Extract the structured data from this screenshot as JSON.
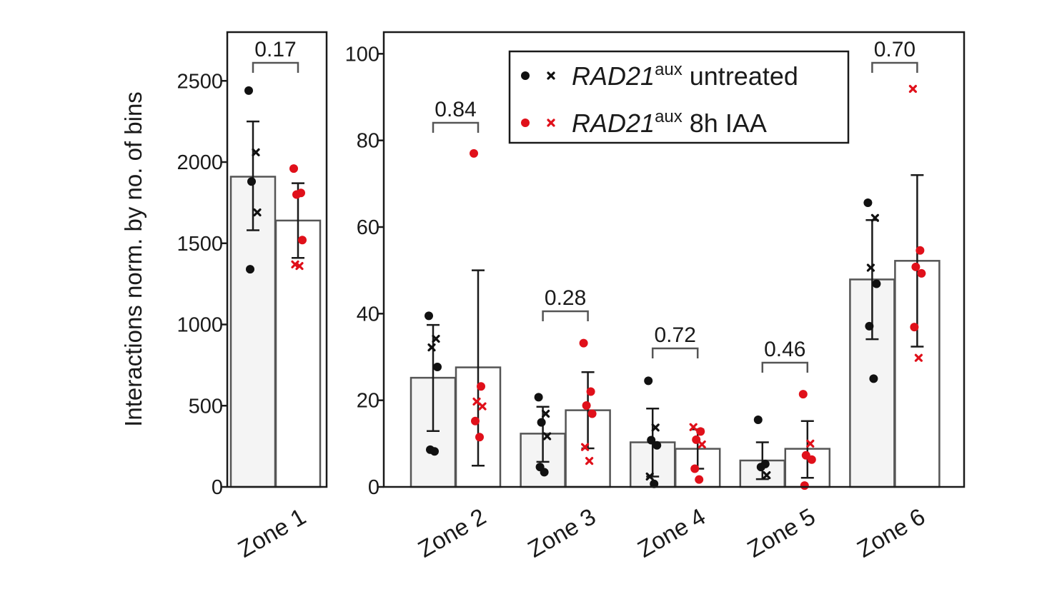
{
  "chart_data": [
    {
      "type": "bar",
      "panel": "left",
      "ylabel": "Interactions norm. by no. of bins",
      "ylim": [
        0,
        2800
      ],
      "yticks": [
        0,
        500,
        1000,
        1500,
        2000,
        2500
      ],
      "ytick_labels": [
        "0",
        "500",
        "1000",
        "1500",
        "2000",
        "2500"
      ],
      "categories": [
        "Zone 1"
      ],
      "series": [
        {
          "name": "RAD21aux untreated",
          "color": "#111111",
          "values": [
            1910
          ],
          "err_low": [
            1580
          ],
          "err_high": [
            2250
          ],
          "points": [
            [
              {
                "v": 2440,
                "m": "dot"
              },
              {
                "v": 2060,
                "m": "x"
              },
              {
                "v": 1880,
                "m": "dot"
              },
              {
                "v": 1690,
                "m": "x"
              },
              {
                "v": 1340,
                "m": "dot"
              }
            ]
          ]
        },
        {
          "name": "RAD21aux 8h IAA",
          "color": "#e0101a",
          "values": [
            1640
          ],
          "err_low": [
            1410
          ],
          "err_high": [
            1870
          ],
          "points": [
            [
              {
                "v": 1960,
                "m": "dot"
              },
              {
                "v": 1810,
                "m": "dot"
              },
              {
                "v": 1800,
                "m": "dot"
              },
              {
                "v": 1520,
                "m": "dot"
              },
              {
                "v": 1370,
                "m": "x"
              },
              {
                "v": 1360,
                "m": "x"
              }
            ]
          ]
        }
      ],
      "pvalues": [
        "0.17"
      ]
    },
    {
      "type": "bar",
      "panel": "right",
      "ylim": [
        0,
        105
      ],
      "yticks": [
        0,
        20,
        40,
        60,
        80,
        100
      ],
      "ytick_labels": [
        "0",
        "20",
        "40",
        "60",
        "80",
        "100"
      ],
      "categories": [
        "Zone 2",
        "Zone 3",
        "Zone 4",
        "Zone 5",
        "Zone 6"
      ],
      "series": [
        {
          "name": "RAD21aux untreated",
          "color": "#111111",
          "values": [
            25.2,
            12.3,
            10.3,
            6.1,
            47.9
          ],
          "err_low": [
            12.9,
            5.8,
            2.4,
            1.8,
            34.1
          ],
          "err_high": [
            37.4,
            18.5,
            18.1,
            10.3,
            61.6
          ],
          "points": [
            [
              {
                "v": 39.5,
                "m": "dot"
              },
              {
                "v": 34.2,
                "m": "x"
              },
              {
                "v": 32.2,
                "m": "x"
              },
              {
                "v": 27.7,
                "m": "dot"
              },
              {
                "v": 8.6,
                "m": "dot"
              },
              {
                "v": 8.2,
                "m": "dot"
              }
            ],
            [
              {
                "v": 20.7,
                "m": "dot"
              },
              {
                "v": 16.9,
                "m": "x"
              },
              {
                "v": 14.9,
                "m": "dot"
              },
              {
                "v": 11.7,
                "m": "x"
              },
              {
                "v": 4.6,
                "m": "dot"
              },
              {
                "v": 3.4,
                "m": "dot"
              }
            ],
            [
              {
                "v": 24.5,
                "m": "dot"
              },
              {
                "v": 13.7,
                "m": "x"
              },
              {
                "v": 10.8,
                "m": "dot"
              },
              {
                "v": 9.6,
                "m": "dot"
              },
              {
                "v": 2.4,
                "m": "x"
              },
              {
                "v": 0.7,
                "m": "dot"
              }
            ],
            [
              {
                "v": 15.5,
                "m": "dot"
              },
              {
                "v": 5.3,
                "m": "dot"
              },
              {
                "v": 4.6,
                "m": "dot"
              },
              {
                "v": 2.7,
                "m": "x"
              }
            ],
            [
              {
                "v": 65.6,
                "m": "dot"
              },
              {
                "v": 62.1,
                "m": "x"
              },
              {
                "v": 50.6,
                "m": "x"
              },
              {
                "v": 46.9,
                "m": "dot"
              },
              {
                "v": 37.1,
                "m": "dot"
              },
              {
                "v": 25.0,
                "m": "dot"
              }
            ]
          ]
        },
        {
          "name": "RAD21aux 8h IAA",
          "color": "#e0101a",
          "values": [
            27.6,
            17.7,
            8.8,
            8.8,
            52.2
          ],
          "err_low": [
            4.9,
            8.9,
            4.2,
            2.1,
            32.4
          ],
          "err_high": [
            50.0,
            26.5,
            13.3,
            15.2,
            72.0
          ],
          "points": [
            [
              {
                "v": 77.0,
                "m": "dot"
              },
              {
                "v": 23.2,
                "m": "dot"
              },
              {
                "v": 19.7,
                "m": "x"
              },
              {
                "v": 18.6,
                "m": "x"
              },
              {
                "v": 15.2,
                "m": "dot"
              },
              {
                "v": 11.5,
                "m": "dot"
              }
            ],
            [
              {
                "v": 33.2,
                "m": "dot"
              },
              {
                "v": 22.0,
                "m": "dot"
              },
              {
                "v": 18.8,
                "m": "dot"
              },
              {
                "v": 16.9,
                "m": "dot"
              },
              {
                "v": 9.2,
                "m": "x"
              },
              {
                "v": 6.0,
                "m": "x"
              }
            ],
            [
              {
                "v": 13.8,
                "m": "x"
              },
              {
                "v": 12.8,
                "m": "dot"
              },
              {
                "v": 10.9,
                "m": "dot"
              },
              {
                "v": 9.8,
                "m": "x"
              },
              {
                "v": 4.2,
                "m": "dot"
              },
              {
                "v": 1.7,
                "m": "dot"
              }
            ],
            [
              {
                "v": 21.4,
                "m": "dot"
              },
              {
                "v": 10.0,
                "m": "x"
              },
              {
                "v": 7.3,
                "m": "dot"
              },
              {
                "v": 6.3,
                "m": "dot"
              },
              {
                "v": 0.3,
                "m": "dot"
              }
            ],
            [
              {
                "v": 91.9,
                "m": "x"
              },
              {
                "v": 54.6,
                "m": "dot"
              },
              {
                "v": 50.8,
                "m": "dot"
              },
              {
                "v": 49.3,
                "m": "dot"
              },
              {
                "v": 36.9,
                "m": "dot"
              },
              {
                "v": 29.8,
                "m": "x"
              }
            ]
          ]
        }
      ],
      "pvalues": [
        "0.84",
        "0.28",
        "0.72",
        "0.46",
        "0.70"
      ],
      "legend": {
        "position": "top-right",
        "entries": [
          {
            "name_main": "RAD21",
            "name_sup": "aux",
            "name_rest": " untreated",
            "color": "#111111"
          },
          {
            "name_main": "RAD21",
            "name_sup": "aux",
            "name_rest": " 8h IAA",
            "color": "#e0101a"
          }
        ]
      }
    }
  ]
}
